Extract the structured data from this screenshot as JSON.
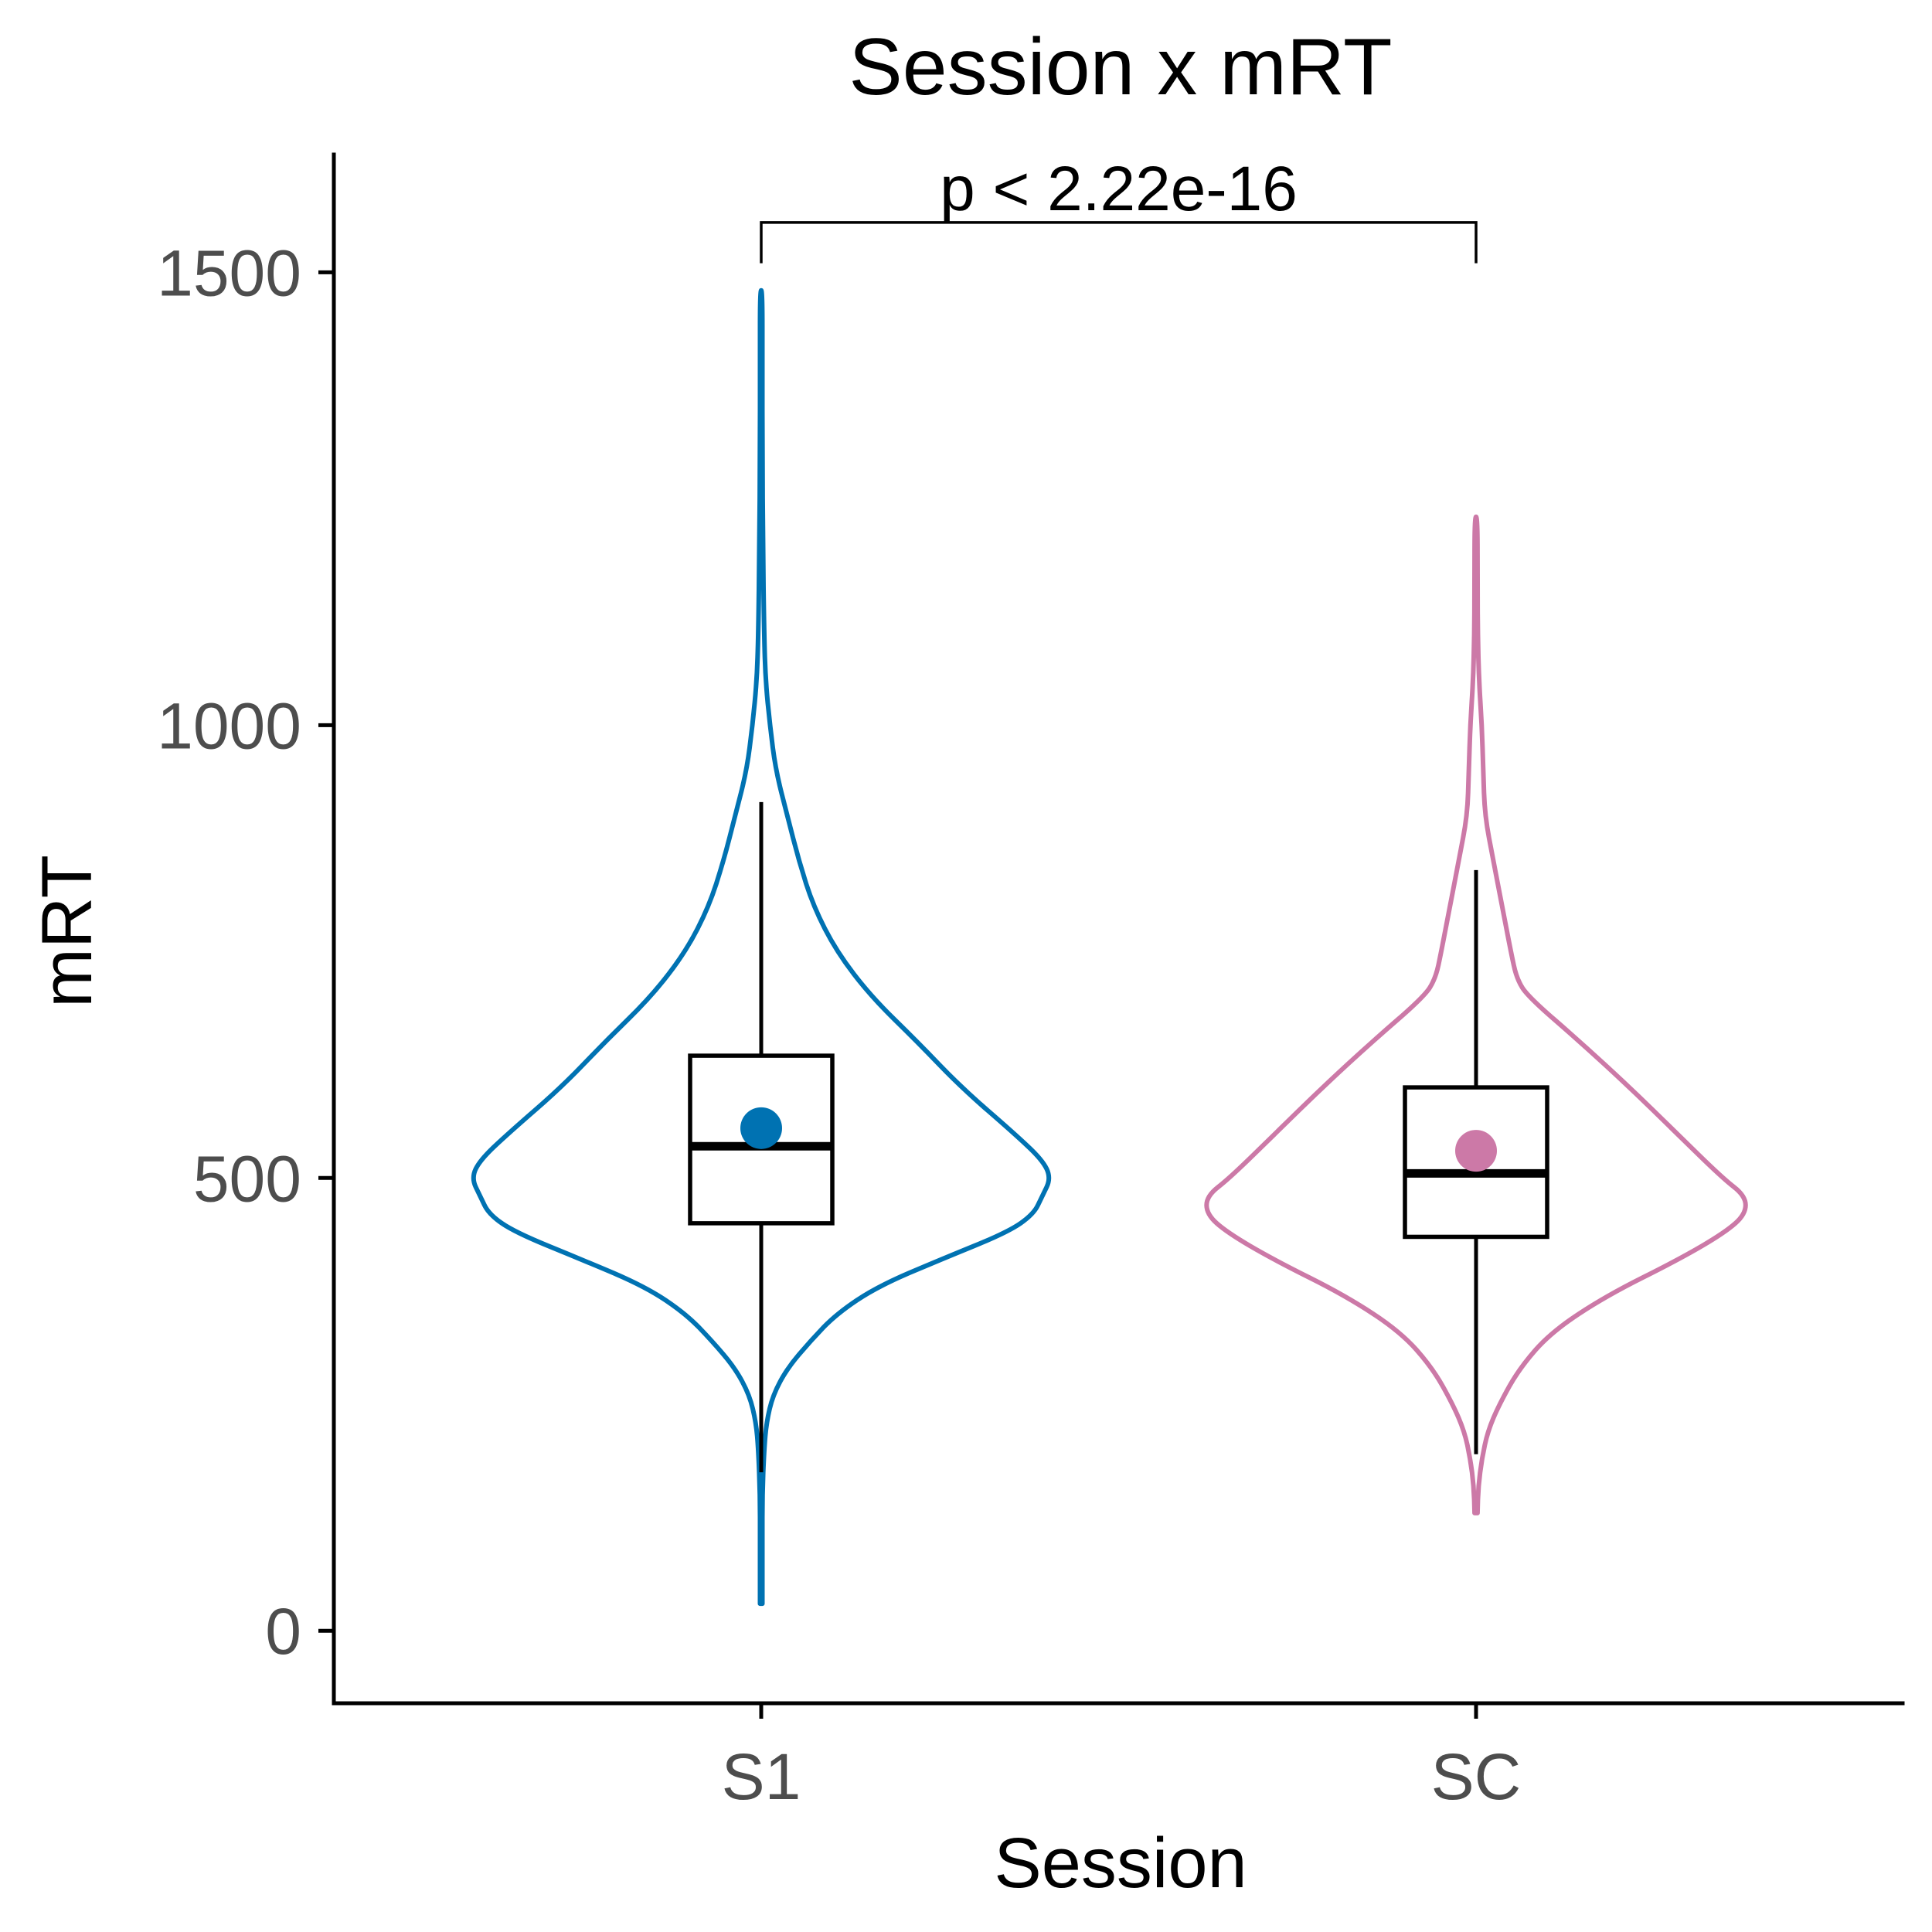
{
  "chart_data": {
    "type": "violin",
    "title": "Session x mRT",
    "xlabel": "Session",
    "ylabel": "mRT",
    "ylim": [
      -80,
      1630
    ],
    "yticks": [
      0,
      500,
      1000,
      1500
    ],
    "ytick_labels": [
      "0",
      "500",
      "1000",
      "1500"
    ],
    "grid": false,
    "legend": "none",
    "categories": [
      "S1",
      "SC"
    ],
    "series": [
      {
        "category": "S1",
        "color": "#0072b2",
        "box": {
          "whisker_low": 175,
          "q1": 450,
          "median": 535,
          "q3": 635,
          "whisker_high": 915
        },
        "mean": 555,
        "violin": {
          "min": 30,
          "max": 1480,
          "profile": [
            [
              30,
              0.002
            ],
            [
              100,
              0.003
            ],
            [
              150,
              0.004
            ],
            [
              200,
              0.01
            ],
            [
              230,
              0.018
            ],
            [
              260,
              0.04
            ],
            [
              290,
              0.09
            ],
            [
              320,
              0.17
            ],
            [
              350,
              0.26
            ],
            [
              380,
              0.4
            ],
            [
              410,
              0.62
            ],
            [
              440,
              0.85
            ],
            [
              460,
              0.94
            ],
            [
              480,
              0.97
            ],
            [
              500,
              1.0
            ],
            [
              520,
              0.97
            ],
            [
              550,
              0.87
            ],
            [
              600,
              0.69
            ],
            [
              650,
              0.54
            ],
            [
              700,
              0.38
            ],
            [
              750,
              0.26
            ],
            [
              800,
              0.18
            ],
            [
              850,
              0.13
            ],
            [
              900,
              0.09
            ],
            [
              950,
              0.05
            ],
            [
              1000,
              0.03
            ],
            [
              1050,
              0.015
            ],
            [
              1100,
              0.01
            ],
            [
              1200,
              0.006
            ],
            [
              1300,
              0.004
            ],
            [
              1400,
              0.003
            ],
            [
              1480,
              0.002
            ]
          ]
        }
      },
      {
        "category": "SC",
        "color": "#cc79a7",
        "box": {
          "whisker_low": 195,
          "q1": 435,
          "median": 505,
          "q3": 600,
          "whisker_high": 840
        },
        "mean": 530,
        "violin": {
          "min": 130,
          "max": 1230,
          "profile": [
            [
              130,
              0.005
            ],
            [
              160,
              0.008
            ],
            [
              190,
              0.02
            ],
            [
              220,
              0.04
            ],
            [
              250,
              0.08
            ],
            [
              290,
              0.15
            ],
            [
              330,
              0.26
            ],
            [
              370,
              0.45
            ],
            [
              410,
              0.7
            ],
            [
              440,
              0.86
            ],
            [
              460,
              0.93
            ],
            [
              480,
              0.93
            ],
            [
              500,
              0.85
            ],
            [
              550,
              0.69
            ],
            [
              600,
              0.53
            ],
            [
              650,
              0.36
            ],
            [
              700,
              0.18
            ],
            [
              720,
              0.14
            ],
            [
              750,
              0.12
            ],
            [
              800,
              0.09
            ],
            [
              850,
              0.06
            ],
            [
              900,
              0.03
            ],
            [
              950,
              0.025
            ],
            [
              1000,
              0.02
            ],
            [
              1050,
              0.01
            ],
            [
              1100,
              0.006
            ],
            [
              1150,
              0.005
            ],
            [
              1230,
              0.005
            ]
          ]
        }
      }
    ],
    "annotations": [
      {
        "text": "p < 2.22e-16",
        "from": "S1",
        "to": "SC",
        "bracket_y": 1555,
        "tick_bottom": 1510
      }
    ]
  }
}
